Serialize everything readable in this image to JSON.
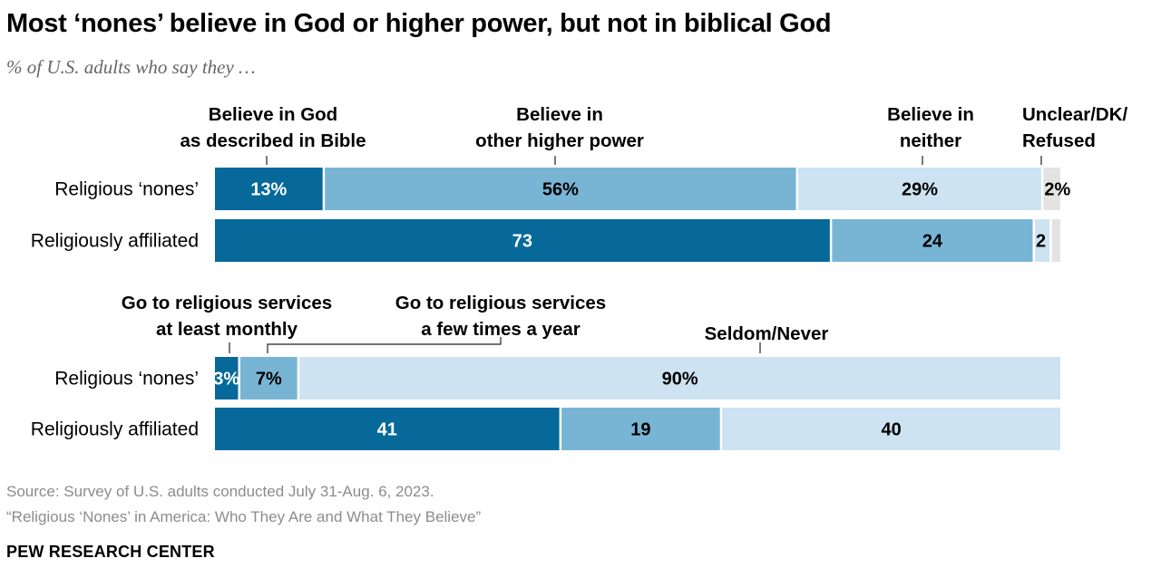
{
  "title": "Most ‘nones’ believe in God or higher power, but not in biblical God",
  "subtitle": "% of U.S. adults who say they …",
  "source": "Source: Survey of U.S. adults conducted July 31-Aug. 6, 2023.",
  "report": "“Religious ‘Nones’ in America: Who They Are and What They Believe”",
  "org": "PEW RESEARCH CENTER",
  "colors": {
    "dark": "#06699a",
    "medium": "#78b5d5",
    "light": "#cde3f1",
    "gray": "#e3e3e3"
  },
  "chart_data": [
    {
      "type": "bar",
      "orientation": "horizontal-stacked",
      "categories": [
        "Religious ‘nones’",
        "Religiously affiliated"
      ],
      "series": [
        {
          "name": "Believe in God as described in Bible",
          "legend_lines": [
            "Believe in God",
            "as described in Bible"
          ],
          "values": [
            13,
            73
          ],
          "labels": [
            "13%",
            "73"
          ],
          "color": "#06699a",
          "label_color": "#ffffff"
        },
        {
          "name": "Believe in other higher power",
          "legend_lines": [
            "Believe in",
            "other higher power"
          ],
          "values": [
            56,
            24
          ],
          "labels": [
            "56%",
            "24"
          ],
          "color": "#78b5d5",
          "label_color": "#000000"
        },
        {
          "name": "Believe in neither",
          "legend_lines": [
            "Believe in",
            "neither"
          ],
          "values": [
            29,
            2
          ],
          "labels": [
            "29%",
            "2"
          ],
          "color": "#cde3f1",
          "label_color": "#000000"
        },
        {
          "name": "Unclear/DK/Refused",
          "legend_lines": [
            "Unclear/DK/",
            "Refused"
          ],
          "values": [
            2,
            1
          ],
          "labels": [
            "2%",
            ""
          ],
          "color": "#e3e3e3",
          "label_color": "#000000"
        }
      ]
    },
    {
      "type": "bar",
      "orientation": "horizontal-stacked",
      "categories": [
        "Religious ‘nones’",
        "Religiously affiliated"
      ],
      "series": [
        {
          "name": "Go to religious services at least monthly",
          "legend_lines": [
            "Go to religious services",
            "at least monthly"
          ],
          "values": [
            3,
            41
          ],
          "labels": [
            "3%",
            "41"
          ],
          "color": "#06699a",
          "label_color": "#ffffff"
        },
        {
          "name": "Go to religious services a few times a year",
          "legend_lines": [
            "Go to religious services",
            "a few times a year"
          ],
          "values": [
            7,
            19
          ],
          "labels": [
            "7%",
            "19"
          ],
          "color": "#78b5d5",
          "label_color": "#000000"
        },
        {
          "name": "Seldom/Never",
          "legend_lines": [
            "Seldom/Never"
          ],
          "values": [
            90,
            40
          ],
          "labels": [
            "90%",
            "40"
          ],
          "color": "#cde3f1",
          "label_color": "#000000"
        }
      ]
    }
  ]
}
